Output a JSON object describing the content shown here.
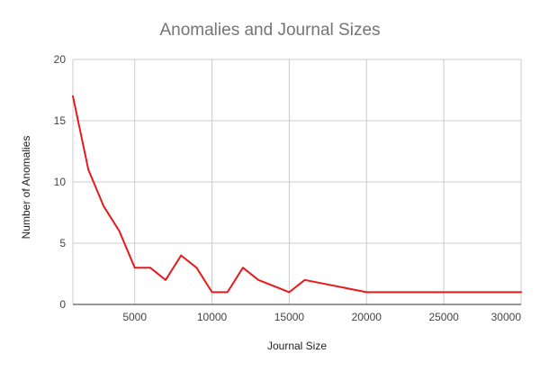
{
  "chart_data": {
    "type": "line",
    "title": "Anomalies and Journal Sizes",
    "xlabel": "Journal Size",
    "ylabel": "Number of Anomalies",
    "xlim": [
      1000,
      30000
    ],
    "ylim": [
      0,
      20
    ],
    "x_ticks": [
      5000,
      10000,
      15000,
      20000,
      25000,
      30000
    ],
    "y_ticks": [
      0,
      5,
      10,
      15,
      20
    ],
    "grid": true,
    "legend": "none",
    "series": [
      {
        "color": "#e8191c",
        "x": [
          1000,
          2000,
          3000,
          4000,
          5000,
          6000,
          7000,
          8000,
          9000,
          10000,
          11000,
          12000,
          13000,
          14000,
          15000,
          16000,
          20000,
          30000
        ],
        "y": [
          17,
          11,
          8,
          6,
          3,
          3,
          2,
          4,
          3,
          1,
          1,
          3,
          2,
          1.5,
          1,
          2,
          1,
          1
        ]
      }
    ]
  }
}
